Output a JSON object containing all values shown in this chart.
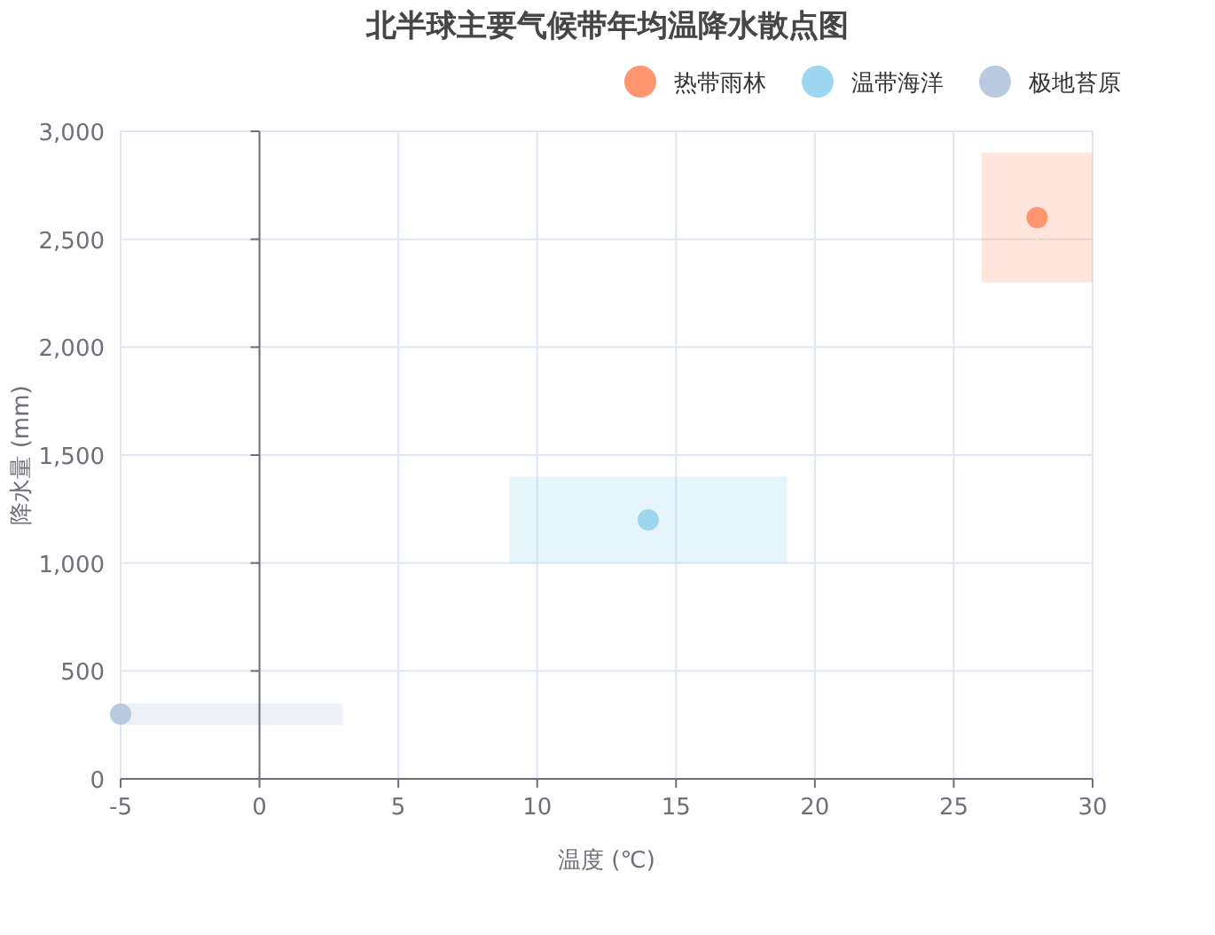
{
  "chart_data": {
    "type": "scatter",
    "title": "北半球主要气候带年均温降水散点图",
    "xlabel": "温度 (℃)",
    "ylabel": "降水量 (mm)",
    "series": [
      {
        "name": "热带雨林",
        "color": "#ff9670",
        "x": [
          28
        ],
        "values": [
          2600
        ],
        "xerrors": [
          [
            26,
            30
          ]
        ],
        "errors": [
          [
            2300,
            2900
          ]
        ]
      },
      {
        "name": "温带海洋",
        "color": "#9dd6ee",
        "x": [
          14
        ],
        "values": [
          1200
        ],
        "xerrors": [
          [
            9,
            19
          ]
        ],
        "errors": [
          [
            1000,
            1400
          ]
        ]
      },
      {
        "name": "极地苔原",
        "color": "#b8c9e0",
        "x": [
          -5
        ],
        "values": [
          300
        ],
        "xerrors": [
          [
            -5,
            3
          ]
        ],
        "errors": [
          [
            250,
            350
          ]
        ]
      }
    ],
    "xlim": [
      -5,
      30
    ],
    "xticks": [
      -5,
      0,
      5,
      10,
      15,
      20,
      25,
      30
    ],
    "ylim": [
      0,
      3000
    ],
    "yticks": [
      {
        "value": 0,
        "label": "0"
      },
      {
        "value": 500,
        "label": "500"
      },
      {
        "value": 1000,
        "label": "1,000"
      },
      {
        "value": 1500,
        "label": "1,500"
      },
      {
        "value": 2000,
        "label": "2,000"
      },
      {
        "value": 2500,
        "label": "2,500"
      },
      {
        "value": 3000,
        "label": "3,000"
      }
    ],
    "grid": true,
    "legend": "top right",
    "marker": "circle"
  }
}
